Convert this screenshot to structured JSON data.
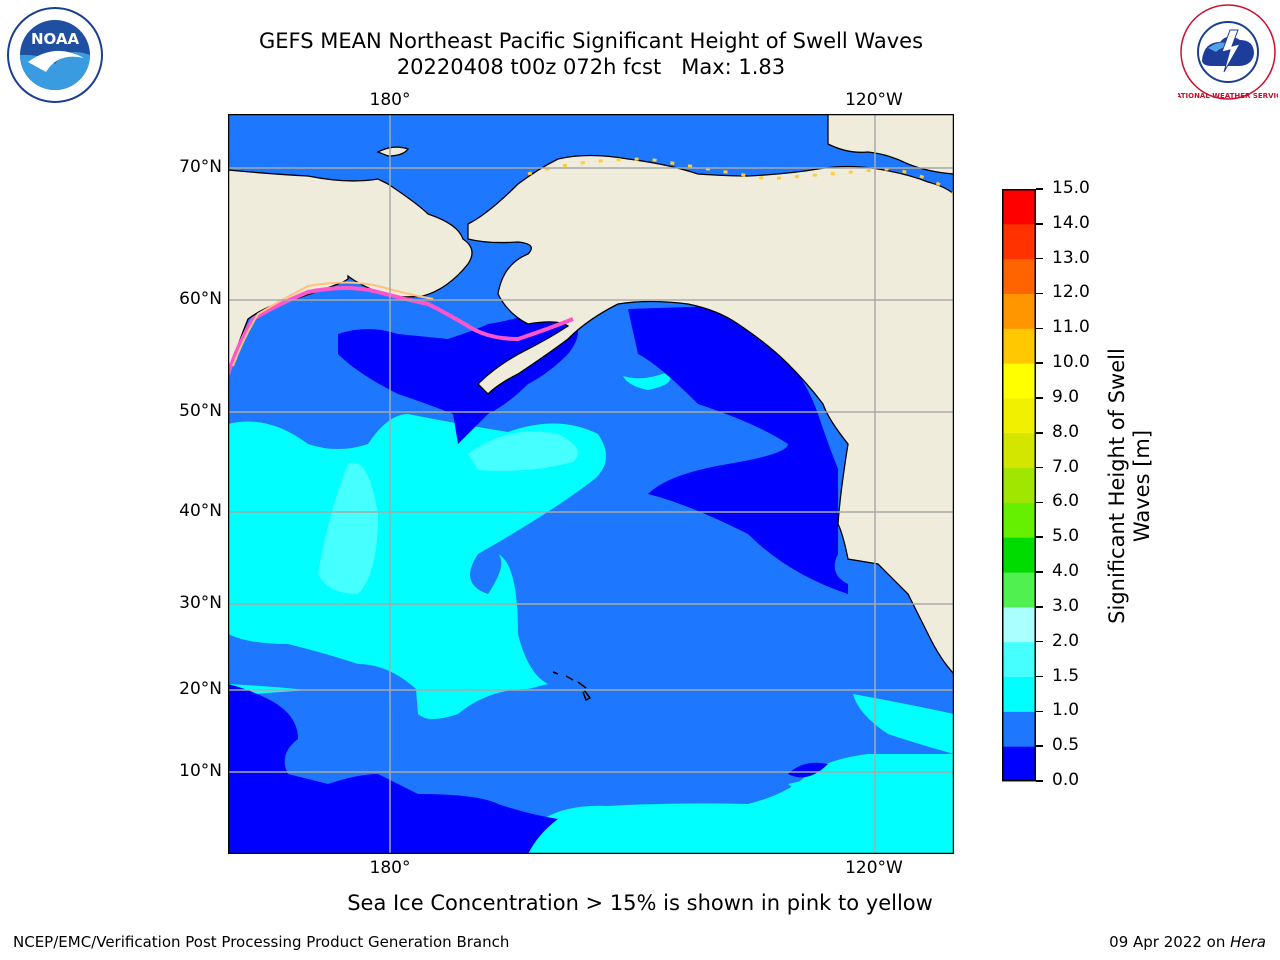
{
  "title": {
    "line1": "GEFS MEAN Northeast Pacific Significant Height of Swell Waves",
    "line2": "20220408 t00z 072h fcst   Max: 1.83"
  },
  "logos": {
    "noaa_text": "NOAA",
    "nws_text": "NATIONAL WEATHER SERVICE"
  },
  "map": {
    "lon_labels_top": [
      "180°",
      "120°W"
    ],
    "lon_labels_bottom": [
      "180°",
      "120°W"
    ],
    "lat_labels": [
      "70°N",
      "60°N",
      "50°N",
      "40°N",
      "30°N",
      "20°N",
      "10°N"
    ]
  },
  "colorbar": {
    "label_line1": "Significant Height of Swell",
    "label_line2": "Waves [m]",
    "ticks": [
      "0.0",
      "0.5",
      "1.0",
      "1.5",
      "2.0",
      "3.0",
      "4.0",
      "5.0",
      "6.0",
      "7.0",
      "8.0",
      "9.0",
      "10.0",
      "11.0",
      "12.0",
      "13.0",
      "14.0",
      "15.0"
    ],
    "colors": [
      "#0000ff",
      "#1e78ff",
      "#00ffff",
      "#46ffff",
      "#aaffff",
      "#50f050",
      "#00dc00",
      "#64f000",
      "#a0e600",
      "#d2e600",
      "#f0f000",
      "#ffff00",
      "#ffc800",
      "#ff9600",
      "#ff6400",
      "#ff3200",
      "#ff0000"
    ]
  },
  "legend_note": "Sea Ice Concentration > 15% is shown in pink to yellow",
  "footer": {
    "left": "NCEP/EMC/Verification Post Processing Product Generation Branch",
    "date": "09 Apr 2022 on ",
    "machine": "Hera"
  }
}
